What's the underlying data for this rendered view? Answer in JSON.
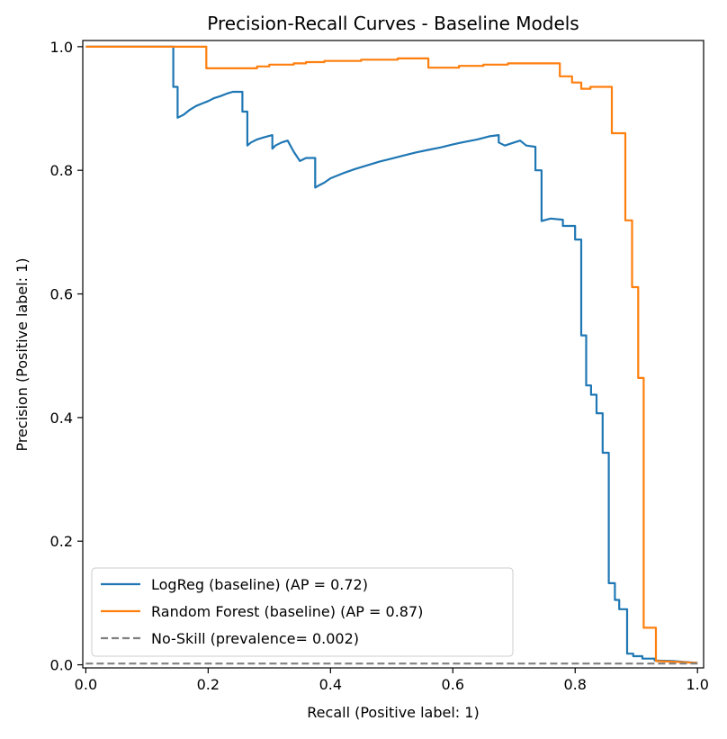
{
  "chart_data": {
    "type": "line",
    "title": "Precision-Recall Curves - Baseline Models",
    "xlabel": "Recall (Positive label: 1)",
    "ylabel": "Precision (Positive label: 1)",
    "xlim": [
      -0.005,
      1.01
    ],
    "ylim": [
      -0.005,
      1.01
    ],
    "grid": false,
    "legend_position": "lower-left",
    "x_ticks": [
      {
        "value": 0.0,
        "label": "0.0"
      },
      {
        "value": 0.2,
        "label": "0.2"
      },
      {
        "value": 0.4,
        "label": "0.4"
      },
      {
        "value": 0.6,
        "label": "0.6"
      },
      {
        "value": 0.8,
        "label": "0.8"
      },
      {
        "value": 1.0,
        "label": "1.0"
      }
    ],
    "y_ticks": [
      {
        "value": 0.0,
        "label": "0.0"
      },
      {
        "value": 0.2,
        "label": "0.2"
      },
      {
        "value": 0.4,
        "label": "0.4"
      },
      {
        "value": 0.6,
        "label": "0.6"
      },
      {
        "value": 0.8,
        "label": "0.8"
      },
      {
        "value": 1.0,
        "label": "1.0"
      }
    ],
    "series": [
      {
        "name": "LogReg (baseline) (AP = 0.72)",
        "color": "#1f77b4",
        "style": "steps",
        "points": [
          [
            0.0,
            1.0
          ],
          [
            0.143,
            1.0
          ],
          [
            0.143,
            0.935
          ],
          [
            0.15,
            0.935
          ],
          [
            0.15,
            0.885
          ],
          [
            0.16,
            0.89
          ],
          [
            0.17,
            0.898
          ],
          [
            0.18,
            0.904
          ],
          [
            0.19,
            0.908
          ],
          [
            0.2,
            0.912
          ],
          [
            0.21,
            0.917
          ],
          [
            0.22,
            0.92
          ],
          [
            0.23,
            0.924
          ],
          [
            0.24,
            0.927
          ],
          [
            0.256,
            0.927
          ],
          [
            0.256,
            0.895
          ],
          [
            0.264,
            0.895
          ],
          [
            0.264,
            0.84
          ],
          [
            0.27,
            0.845
          ],
          [
            0.28,
            0.85
          ],
          [
            0.29,
            0.853
          ],
          [
            0.305,
            0.857
          ],
          [
            0.305,
            0.835
          ],
          [
            0.31,
            0.84
          ],
          [
            0.32,
            0.845
          ],
          [
            0.33,
            0.848
          ],
          [
            0.34,
            0.83
          ],
          [
            0.35,
            0.815
          ],
          [
            0.36,
            0.82
          ],
          [
            0.375,
            0.82
          ],
          [
            0.375,
            0.772
          ],
          [
            0.38,
            0.775
          ],
          [
            0.39,
            0.78
          ],
          [
            0.4,
            0.787
          ],
          [
            0.42,
            0.795
          ],
          [
            0.44,
            0.802
          ],
          [
            0.46,
            0.808
          ],
          [
            0.48,
            0.814
          ],
          [
            0.5,
            0.819
          ],
          [
            0.52,
            0.824
          ],
          [
            0.54,
            0.829
          ],
          [
            0.56,
            0.833
          ],
          [
            0.58,
            0.837
          ],
          [
            0.6,
            0.842
          ],
          [
            0.62,
            0.846
          ],
          [
            0.64,
            0.85
          ],
          [
            0.66,
            0.855
          ],
          [
            0.675,
            0.857
          ],
          [
            0.675,
            0.845
          ],
          [
            0.685,
            0.84
          ],
          [
            0.7,
            0.845
          ],
          [
            0.71,
            0.848
          ],
          [
            0.72,
            0.84
          ],
          [
            0.735,
            0.838
          ],
          [
            0.735,
            0.8
          ],
          [
            0.745,
            0.8
          ],
          [
            0.745,
            0.718
          ],
          [
            0.76,
            0.722
          ],
          [
            0.78,
            0.72
          ],
          [
            0.78,
            0.71
          ],
          [
            0.8,
            0.71
          ],
          [
            0.8,
            0.688
          ],
          [
            0.81,
            0.688
          ],
          [
            0.81,
            0.533
          ],
          [
            0.818,
            0.533
          ],
          [
            0.818,
            0.452
          ],
          [
            0.826,
            0.452
          ],
          [
            0.826,
            0.437
          ],
          [
            0.835,
            0.437
          ],
          [
            0.835,
            0.407
          ],
          [
            0.845,
            0.407
          ],
          [
            0.845,
            0.343
          ],
          [
            0.855,
            0.343
          ],
          [
            0.855,
            0.132
          ],
          [
            0.865,
            0.132
          ],
          [
            0.865,
            0.105
          ],
          [
            0.872,
            0.105
          ],
          [
            0.872,
            0.09
          ],
          [
            0.885,
            0.09
          ],
          [
            0.885,
            0.018
          ],
          [
            0.895,
            0.018
          ],
          [
            0.895,
            0.014
          ],
          [
            0.91,
            0.014
          ],
          [
            0.91,
            0.01
          ],
          [
            0.93,
            0.01
          ],
          [
            0.93,
            0.007
          ],
          [
            0.96,
            0.006
          ],
          [
            1.0,
            0.003
          ]
        ]
      },
      {
        "name": "Random Forest (baseline) (AP = 0.87)",
        "color": "#ff7f0e",
        "style": "steps",
        "points": [
          [
            0.0,
            1.0
          ],
          [
            0.197,
            1.0
          ],
          [
            0.197,
            0.965
          ],
          [
            0.23,
            0.965
          ],
          [
            0.28,
            0.965
          ],
          [
            0.28,
            0.968
          ],
          [
            0.3,
            0.968
          ],
          [
            0.3,
            0.971
          ],
          [
            0.34,
            0.971
          ],
          [
            0.34,
            0.973
          ],
          [
            0.36,
            0.973
          ],
          [
            0.36,
            0.975
          ],
          [
            0.39,
            0.975
          ],
          [
            0.39,
            0.977
          ],
          [
            0.45,
            0.977
          ],
          [
            0.45,
            0.979
          ],
          [
            0.51,
            0.979
          ],
          [
            0.51,
            0.981
          ],
          [
            0.56,
            0.981
          ],
          [
            0.56,
            0.966
          ],
          [
            0.61,
            0.966
          ],
          [
            0.61,
            0.969
          ],
          [
            0.65,
            0.969
          ],
          [
            0.65,
            0.971
          ],
          [
            0.69,
            0.971
          ],
          [
            0.69,
            0.973
          ],
          [
            0.775,
            0.973
          ],
          [
            0.775,
            0.952
          ],
          [
            0.795,
            0.952
          ],
          [
            0.795,
            0.942
          ],
          [
            0.81,
            0.942
          ],
          [
            0.81,
            0.932
          ],
          [
            0.825,
            0.932
          ],
          [
            0.825,
            0.935
          ],
          [
            0.86,
            0.935
          ],
          [
            0.86,
            0.86
          ],
          [
            0.882,
            0.86
          ],
          [
            0.882,
            0.719
          ],
          [
            0.893,
            0.719
          ],
          [
            0.893,
            0.611
          ],
          [
            0.903,
            0.611
          ],
          [
            0.903,
            0.464
          ],
          [
            0.912,
            0.464
          ],
          [
            0.912,
            0.06
          ],
          [
            0.932,
            0.06
          ],
          [
            0.932,
            0.006
          ],
          [
            0.96,
            0.005
          ],
          [
            1.0,
            0.003
          ]
        ]
      },
      {
        "name": "No-Skill (prevalence= 0.002)",
        "color": "#808080",
        "style": "dashed",
        "points": [
          [
            0.0,
            0.002
          ],
          [
            1.0,
            0.002
          ]
        ]
      }
    ]
  }
}
